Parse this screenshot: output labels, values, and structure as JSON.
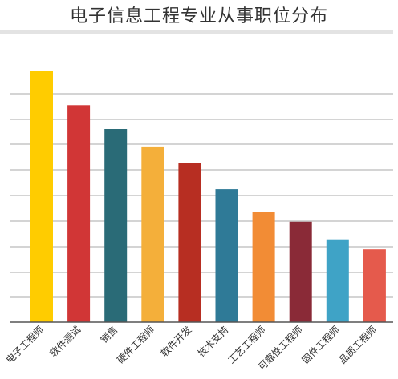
{
  "title": "电子信息工程专业从事职位分布",
  "chart_data": {
    "type": "bar",
    "title": "电子信息工程专业从事职位分布",
    "categories": [
      "电子工程师",
      "软件测试",
      "销售",
      "硬件工程师",
      "软件开发",
      "技术支持",
      "工艺工程师",
      "可靠性工程师",
      "固件工程师",
      "品质工程师"
    ],
    "values": [
      100,
      86.5,
      77,
      70,
      63.5,
      53,
      44,
      40,
      33,
      29
    ],
    "colors": [
      "#FFCC00",
      "#D13636",
      "#2A6B77",
      "#F4AF3A",
      "#B72E22",
      "#2F7A97",
      "#F28C35",
      "#8A2A37",
      "#3FA3C6",
      "#E55A4C"
    ],
    "ylim": [
      0,
      100
    ],
    "grid": true,
    "xlabel": "",
    "ylabel": ""
  }
}
